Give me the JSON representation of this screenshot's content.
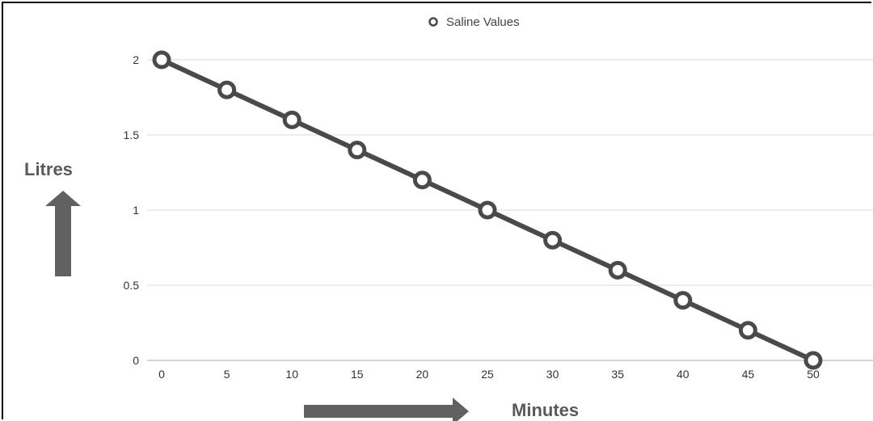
{
  "chart_data": {
    "type": "line",
    "title": "",
    "xlabel": "Minutes",
    "ylabel": "Litres",
    "legend": {
      "position": "top-center",
      "entries": [
        "Saline Values"
      ]
    },
    "x": [
      0,
      5,
      10,
      15,
      20,
      25,
      30,
      35,
      40,
      45,
      50
    ],
    "x_ticks": [
      "0",
      "5",
      "10",
      "15",
      "20",
      "25",
      "30",
      "35",
      "40",
      "45",
      "50"
    ],
    "y_ticks": [
      "0",
      "0.5",
      "1",
      "1.5",
      "2"
    ],
    "xlim": [
      0,
      50
    ],
    "ylim": [
      0,
      2
    ],
    "grid": true,
    "series": [
      {
        "name": "Saline Values",
        "values": [
          2,
          1.8,
          1.6,
          1.4,
          1.2,
          1.0,
          0.8,
          0.6,
          0.4,
          0.2,
          0
        ],
        "color": "#4a4a4a"
      }
    ]
  },
  "colors": {
    "line": "#4a4a4a",
    "grid": "#d9d9d9",
    "arrow": "#616161"
  }
}
